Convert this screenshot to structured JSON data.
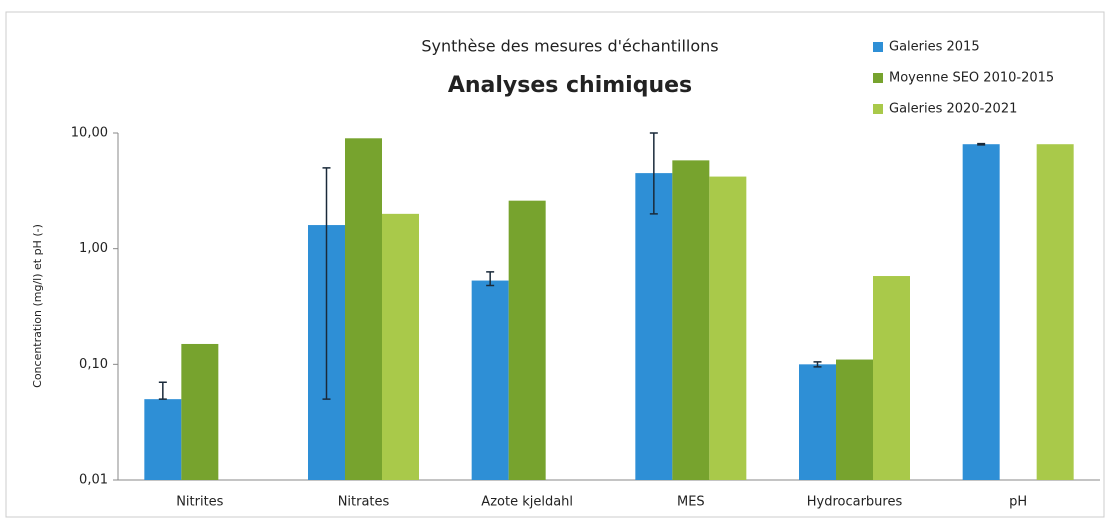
{
  "chart_data": {
    "type": "bar",
    "subtitle": "Synthèse des mesures d'échantillons",
    "title": "Analyses chimiques",
    "y_label": "Concentration (mg/l) et pH (-)",
    "categories": [
      "Nitrites",
      "Nitrates",
      "Azote kjeldahl",
      "MES",
      "Hydrocarbures",
      "pH"
    ],
    "series": [
      {
        "name": "Galeries 2015",
        "color": "#2e8fd6",
        "values": [
          0.05,
          1.6,
          0.53,
          4.5,
          0.1,
          8
        ],
        "errors": [
          [
            0,
            0.02
          ],
          [
            1.55,
            3.4
          ],
          [
            0.05,
            0.1
          ],
          [
            2.5,
            5.5
          ],
          [
            0.005,
            0.005
          ],
          [
            0.1,
            0.1
          ]
        ]
      },
      {
        "name": "Moyenne SEO 2010-2015",
        "color": "#77a32e",
        "values": [
          0.15,
          9,
          2.6,
          5.8,
          0.11,
          null
        ]
      },
      {
        "name": "Galeries 2020-2021",
        "color": "#a9c94a",
        "values": [
          null,
          2.0,
          null,
          4.2,
          0.58,
          8
        ]
      }
    ],
    "log_scale": true,
    "ylim": [
      0.01,
      10
    ],
    "yticks": [
      {
        "value": 0.01,
        "label": "0,01"
      },
      {
        "value": 0.1,
        "label": "0,10"
      },
      {
        "value": 1,
        "label": "1,00"
      },
      {
        "value": 10,
        "label": "10,00"
      }
    ],
    "legend": "top-right",
    "grid": false
  }
}
